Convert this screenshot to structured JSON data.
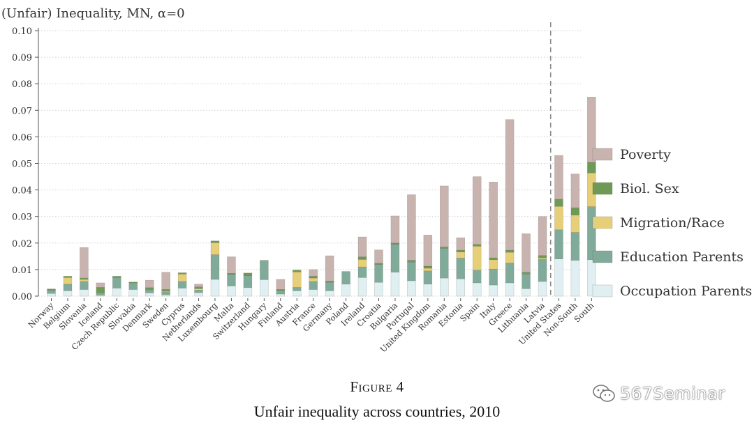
{
  "chart_data": {
    "type": "bar",
    "stacked": true,
    "title": "(Unfair) Inequality, MN, α=0",
    "xlabel": "",
    "ylabel": "",
    "ylim": [
      0,
      0.1
    ],
    "yticks": [
      "0.00",
      "0.01",
      "0.02",
      "0.03",
      "0.04",
      "0.05",
      "0.06",
      "0.07",
      "0.08",
      "0.09",
      "0.10"
    ],
    "grid": true,
    "legend_position": "right",
    "separator_before": "United States",
    "categories": [
      "Norway",
      "Belgium",
      "Slovenia",
      "Iceland",
      "Czech Republic",
      "Slovakia",
      "Denmark",
      "Sweden",
      "Cyprus",
      "Netherlands",
      "Luxembourg",
      "Malta",
      "Switzerland",
      "Hungary",
      "Finland",
      "Austria",
      "France",
      "Germany",
      "Poland",
      "Ireland",
      "Croatia",
      "Bulgaria",
      "Portugal",
      "United Kingdom",
      "Romania",
      "Estonia",
      "Spain",
      "Italy",
      "Greece",
      "Lithuania",
      "Latvia",
      "United States",
      "Non-South",
      "South"
    ],
    "series": [
      {
        "name": "Occupation Parents",
        "color": "#e0f0f2",
        "values": [
          0.001,
          0.002,
          0.0025,
          0.0003,
          0.003,
          0.0025,
          0.0012,
          0.0005,
          0.003,
          0.0013,
          0.0063,
          0.0038,
          0.0032,
          0.0062,
          0.0008,
          0.002,
          0.0025,
          0.002,
          0.0045,
          0.007,
          0.0052,
          0.009,
          0.0058,
          0.0045,
          0.0068,
          0.0065,
          0.005,
          0.0042,
          0.005,
          0.0028,
          0.0055,
          0.014,
          0.0135,
          0.0137
        ]
      },
      {
        "name": "Education Parents",
        "color": "#80ab9a",
        "values": [
          0.0012,
          0.0025,
          0.003,
          0.001,
          0.004,
          0.0025,
          0.0012,
          0.001,
          0.0025,
          0.001,
          0.0093,
          0.0043,
          0.0045,
          0.0073,
          0.0012,
          0.0013,
          0.003,
          0.0032,
          0.0048,
          0.004,
          0.0067,
          0.0105,
          0.007,
          0.005,
          0.0112,
          0.0078,
          0.0048,
          0.006,
          0.0075,
          0.0055,
          0.0085,
          0.011,
          0.0105,
          0.02
        ]
      },
      {
        "name": "Migration/Race",
        "color": "#e6cf78",
        "values": [
          0.0,
          0.0025,
          0.0008,
          0.0,
          0.0,
          0.0,
          0.0,
          0.0003,
          0.0028,
          0.0005,
          0.0045,
          0.0,
          0.0,
          0.0,
          0.0,
          0.0058,
          0.0013,
          0.0,
          0.0,
          0.0028,
          0.0,
          0.0,
          0.0,
          0.001,
          0.0,
          0.0023,
          0.009,
          0.0035,
          0.004,
          0.0,
          0.0005,
          0.0088,
          0.0065,
          0.0127
        ]
      },
      {
        "name": "Biol. Sex",
        "color": "#6f9a55",
        "values": [
          0.0005,
          0.0005,
          0.0005,
          0.002,
          0.0005,
          0.0003,
          0.0008,
          0.0007,
          0.0005,
          0.0007,
          0.0007,
          0.0005,
          0.001,
          0.0,
          0.0005,
          0.0007,
          0.0007,
          0.0005,
          0.0,
          0.001,
          0.0005,
          0.0005,
          0.0007,
          0.0008,
          0.0005,
          0.0007,
          0.0007,
          0.0007,
          0.0008,
          0.0007,
          0.0008,
          0.0027,
          0.0028,
          0.004
        ]
      },
      {
        "name": "Poverty",
        "color": "#c9b3ae",
        "values": [
          0.0,
          0.0,
          0.0115,
          0.0017,
          0.0,
          0.0,
          0.0028,
          0.0065,
          0.0,
          0.001,
          0.0,
          0.0062,
          0.0,
          0.0,
          0.0038,
          0.0,
          0.0025,
          0.0095,
          0.0,
          0.0075,
          0.005,
          0.0102,
          0.0247,
          0.0117,
          0.023,
          0.0047,
          0.0255,
          0.0286,
          0.0492,
          0.0145,
          0.0147,
          0.0165,
          0.0127,
          0.0246
        ]
      }
    ],
    "legend_order": [
      "Poverty",
      "Biol. Sex",
      "Migration/Race",
      "Education Parents",
      "Occupation Parents"
    ]
  },
  "caption": {
    "label": "Figure 4",
    "text": "Unfair inequality across countries, 2010"
  },
  "watermark": {
    "text": "567Seminar"
  }
}
